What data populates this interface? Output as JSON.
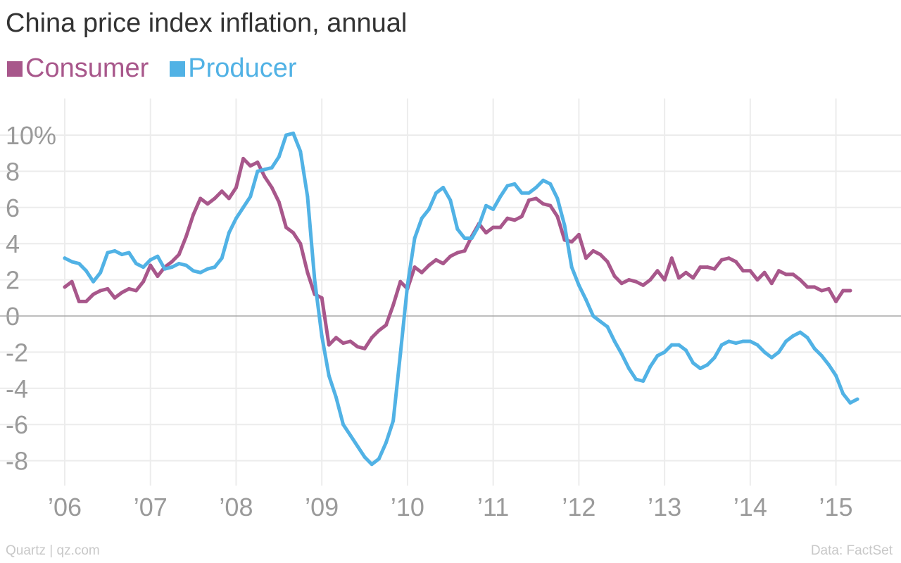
{
  "chart_data": {
    "type": "line",
    "title": "China price index inflation, annual",
    "xlabel": "",
    "ylabel": "",
    "x_range": [
      2006.0,
      2015.25
    ],
    "ylim": [
      -9.5,
      11
    ],
    "y_ticks": [
      {
        "value": 10,
        "label": "10%"
      },
      {
        "value": 8,
        "label": "8"
      },
      {
        "value": 6,
        "label": "6"
      },
      {
        "value": 4,
        "label": "4"
      },
      {
        "value": 2,
        "label": "2"
      },
      {
        "value": 0,
        "label": "0"
      },
      {
        "value": -2,
        "label": "-2"
      },
      {
        "value": -4,
        "label": "-4"
      },
      {
        "value": -6,
        "label": "-6"
      },
      {
        "value": -8,
        "label": "-8"
      }
    ],
    "x_ticks": [
      {
        "value": 2006,
        "label": "’06"
      },
      {
        "value": 2007,
        "label": "’07"
      },
      {
        "value": 2008,
        "label": "’08"
      },
      {
        "value": 2009,
        "label": "’09"
      },
      {
        "value": 2010,
        "label": "’10"
      },
      {
        "value": 2011,
        "label": "’11"
      },
      {
        "value": 2012,
        "label": "’12"
      },
      {
        "value": 2013,
        "label": "’13"
      },
      {
        "value": 2014,
        "label": "’14"
      },
      {
        "value": 2015,
        "label": "’15"
      }
    ],
    "grid": true,
    "legend_position": "top-left",
    "x_start": "2006-01",
    "x_step": "month",
    "series": [
      {
        "name": "Consumer",
        "color": "#a8578b",
        "values": [
          1.6,
          1.9,
          0.8,
          0.8,
          1.2,
          1.4,
          1.5,
          1.0,
          1.3,
          1.5,
          1.4,
          1.9,
          2.8,
          2.2,
          2.7,
          3.0,
          3.4,
          4.4,
          5.6,
          6.5,
          6.2,
          6.5,
          6.9,
          6.5,
          7.1,
          8.7,
          8.3,
          8.5,
          7.7,
          7.1,
          6.3,
          4.9,
          4.6,
          4.0,
          2.4,
          1.2,
          1.0,
          -1.6,
          -1.2,
          -1.5,
          -1.4,
          -1.7,
          -1.8,
          -1.2,
          -0.8,
          -0.5,
          0.6,
          1.9,
          1.5,
          2.7,
          2.4,
          2.8,
          3.1,
          2.9,
          3.3,
          3.5,
          3.6,
          4.4,
          5.1,
          4.6,
          4.9,
          4.9,
          5.4,
          5.3,
          5.5,
          6.4,
          6.5,
          6.2,
          6.1,
          5.5,
          4.2,
          4.1,
          4.5,
          3.2,
          3.6,
          3.4,
          3.0,
          2.2,
          1.8,
          2.0,
          1.9,
          1.7,
          2.0,
          2.5,
          2.0,
          3.2,
          2.1,
          2.4,
          2.1,
          2.7,
          2.7,
          2.6,
          3.1,
          3.2,
          3.0,
          2.5,
          2.5,
          2.0,
          2.4,
          1.8,
          2.5,
          2.3,
          2.3,
          2.0,
          1.6,
          1.6,
          1.4,
          1.5,
          0.8,
          1.4,
          1.4
        ]
      },
      {
        "name": "Producer",
        "color": "#51b2e5",
        "values": [
          3.2,
          3.0,
          2.9,
          2.5,
          1.9,
          2.4,
          3.5,
          3.6,
          3.4,
          3.5,
          2.9,
          2.7,
          3.1,
          3.3,
          2.6,
          2.7,
          2.9,
          2.8,
          2.5,
          2.4,
          2.6,
          2.7,
          3.2,
          4.6,
          5.4,
          6.0,
          6.6,
          8.0,
          8.1,
          8.2,
          8.8,
          10.0,
          10.1,
          9.1,
          6.6,
          2.0,
          -1.1,
          -3.3,
          -4.5,
          -6.0,
          -6.6,
          -7.2,
          -7.8,
          -8.2,
          -7.9,
          -7.0,
          -5.8,
          -2.1,
          1.7,
          4.3,
          5.4,
          5.9,
          6.8,
          7.1,
          6.4,
          4.8,
          4.3,
          4.3,
          5.0,
          6.1,
          5.9,
          6.6,
          7.2,
          7.3,
          6.8,
          6.8,
          7.1,
          7.5,
          7.3,
          6.5,
          5.0,
          2.7,
          1.7,
          0.9,
          0.0,
          -0.3,
          -0.6,
          -1.4,
          -2.1,
          -2.9,
          -3.5,
          -3.6,
          -2.8,
          -2.2,
          -2.0,
          -1.6,
          -1.6,
          -1.9,
          -2.6,
          -2.9,
          -2.7,
          -2.3,
          -1.6,
          -1.4,
          -1.5,
          -1.4,
          -1.4,
          -1.6,
          -2.0,
          -2.3,
          -2.0,
          -1.4,
          -1.1,
          -0.9,
          -1.2,
          -1.8,
          -2.2,
          -2.7,
          -3.3,
          -4.3,
          -4.8,
          -4.6
        ]
      }
    ]
  },
  "footer": {
    "source_left": "Quartz | qz.com",
    "source_right": "Data: FactSet"
  }
}
